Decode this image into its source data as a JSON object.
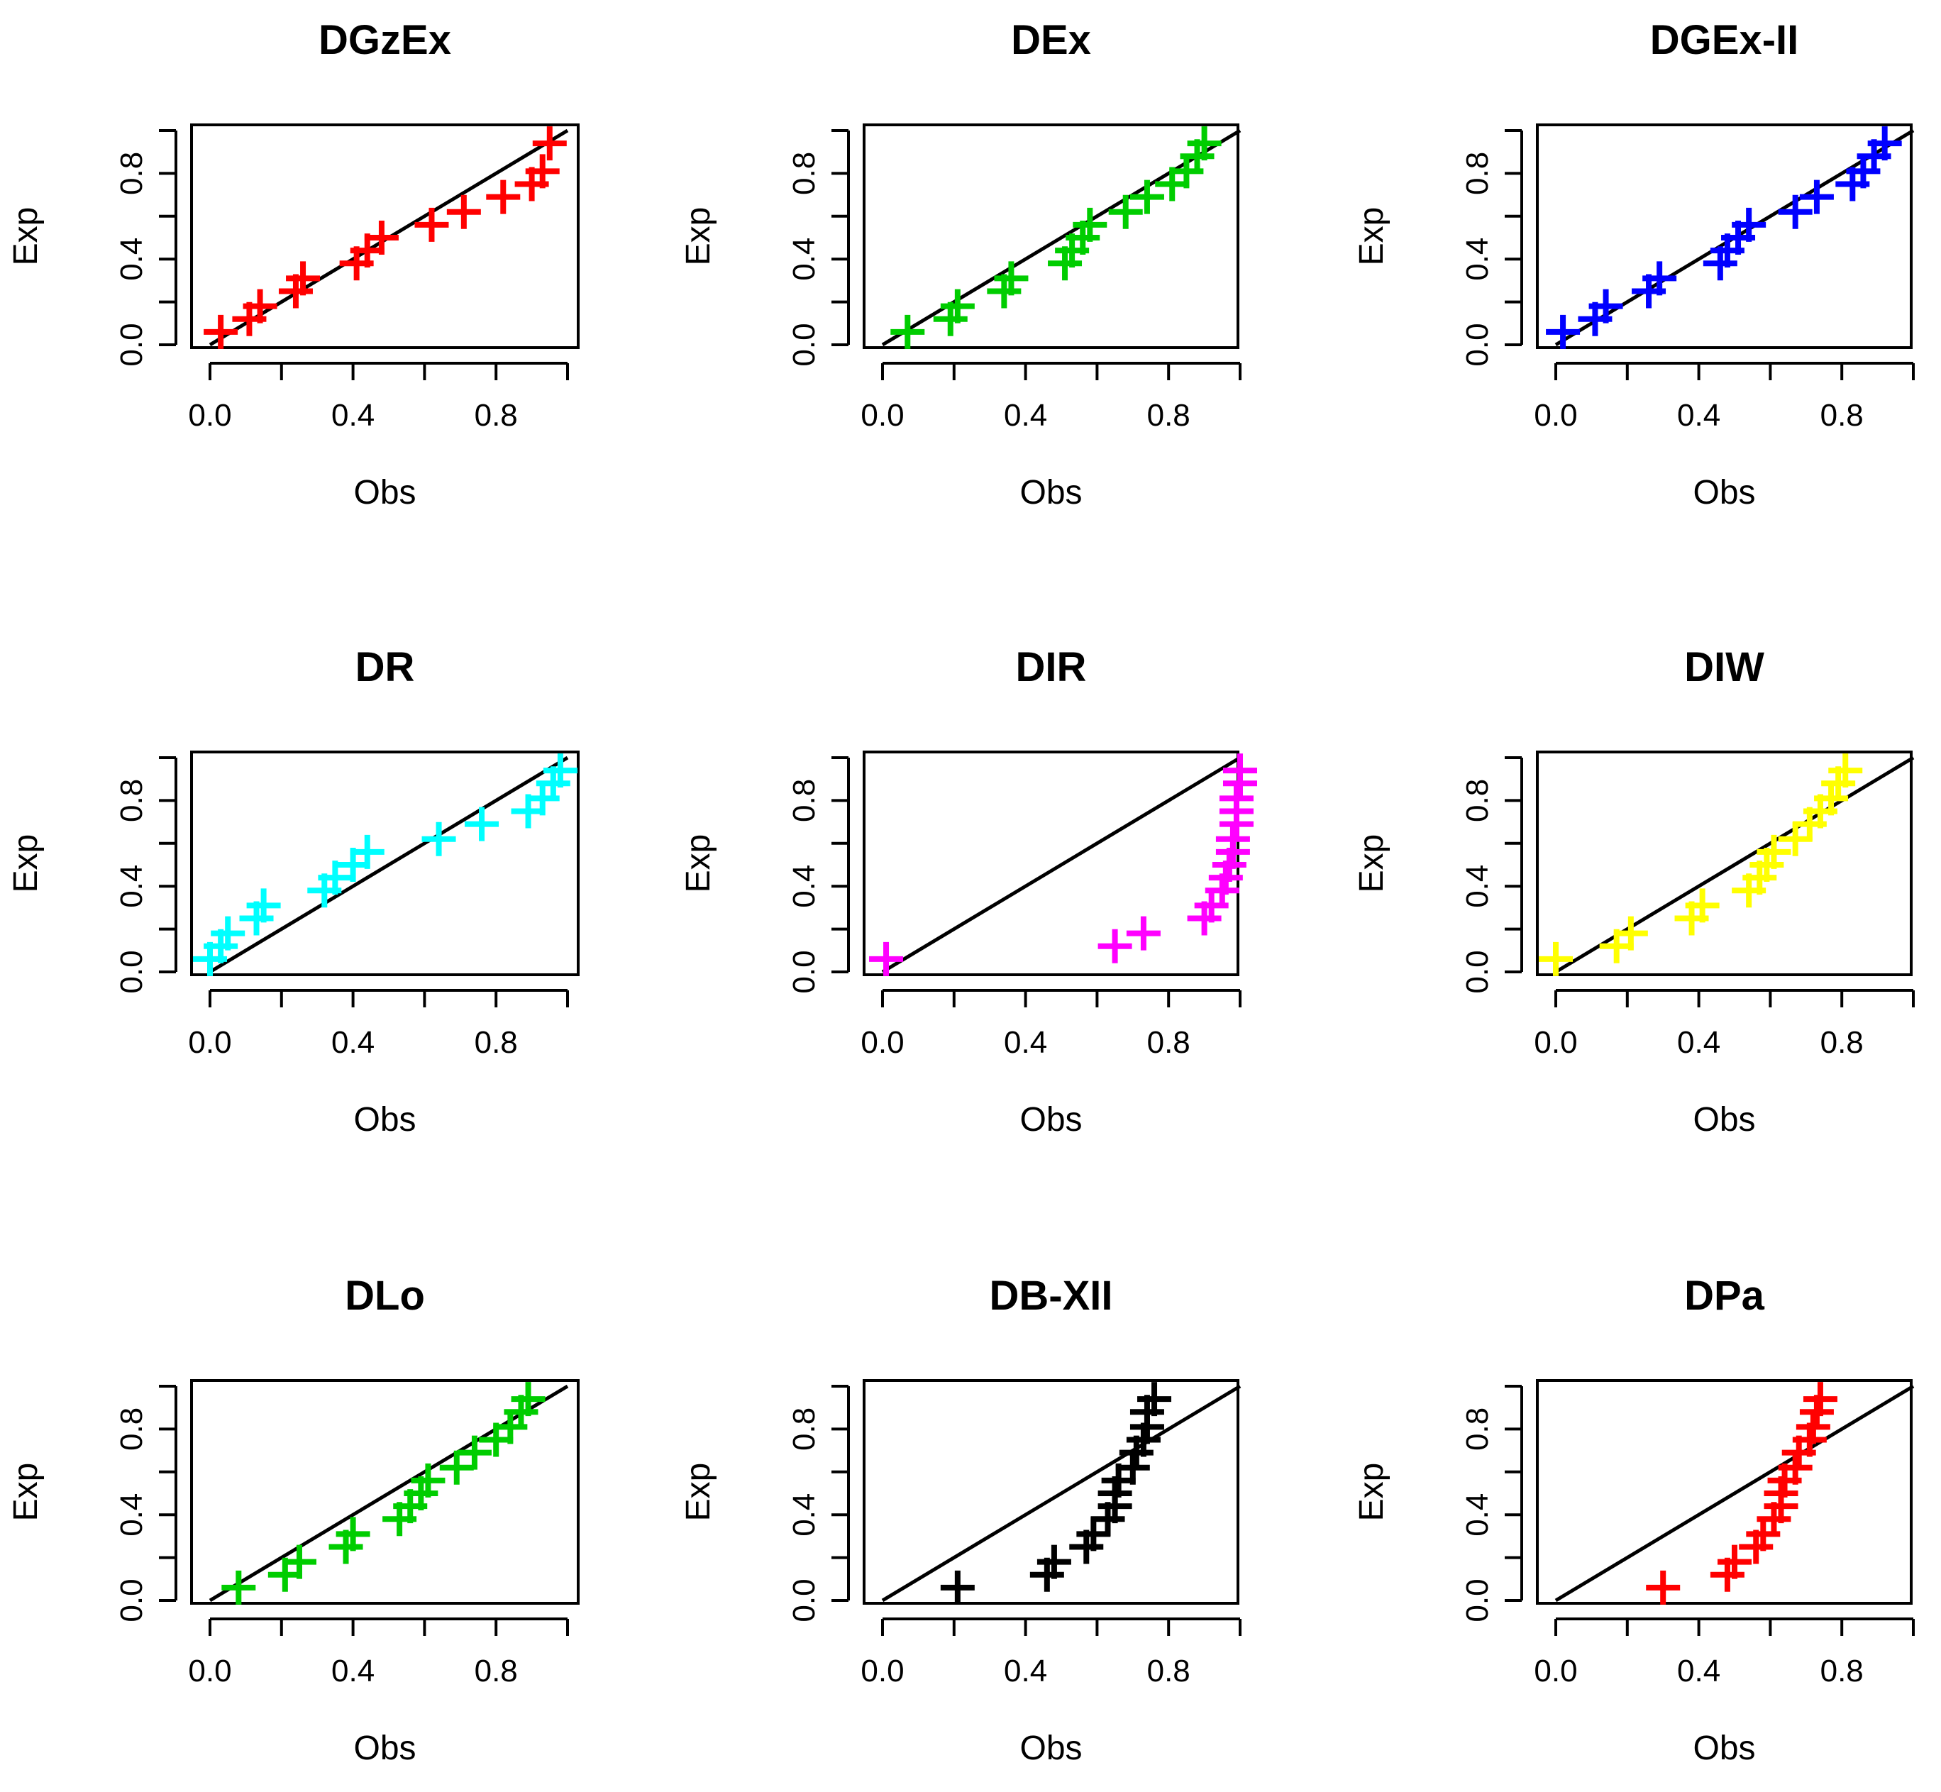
{
  "chart_data": [
    {
      "type": "scatter",
      "title": "DGzEx",
      "xlabel": "Obs",
      "ylabel": "Exp",
      "color": "#ff0000",
      "xlim": [
        0,
        1
      ],
      "ylim": [
        0,
        1
      ],
      "xticks": [
        "0.0",
        "0.4",
        "0.8"
      ],
      "yticks": [
        "0.0",
        "0.4",
        "0.8"
      ],
      "reference_line": "y = x",
      "series": [
        {
          "name": "DGzEx",
          "x": [
            0.03,
            0.11,
            0.14,
            0.24,
            0.26,
            0.41,
            0.44,
            0.48,
            0.62,
            0.71,
            0.82,
            0.9,
            0.93,
            0.95
          ],
          "y": [
            0.06,
            0.12,
            0.18,
            0.25,
            0.31,
            0.38,
            0.44,
            0.5,
            0.56,
            0.62,
            0.69,
            0.75,
            0.81,
            0.94
          ]
        }
      ]
    },
    {
      "type": "scatter",
      "title": "DEx",
      "xlabel": "Obs",
      "ylabel": "Exp",
      "color": "#00cd00",
      "xlim": [
        0,
        1
      ],
      "ylim": [
        0,
        1
      ],
      "xticks": [
        "0.0",
        "0.4",
        "0.8"
      ],
      "yticks": [
        "0.0",
        "0.4",
        "0.8"
      ],
      "reference_line": "y = x",
      "series": [
        {
          "name": "DEx",
          "x": [
            0.07,
            0.19,
            0.21,
            0.34,
            0.36,
            0.51,
            0.53,
            0.56,
            0.58,
            0.68,
            0.74,
            0.81,
            0.85,
            0.88,
            0.9
          ],
          "y": [
            0.06,
            0.12,
            0.18,
            0.25,
            0.31,
            0.38,
            0.44,
            0.5,
            0.56,
            0.62,
            0.69,
            0.75,
            0.81,
            0.88,
            0.94
          ]
        }
      ]
    },
    {
      "type": "scatter",
      "title": "DGEx-II",
      "xlabel": "Obs",
      "ylabel": "Exp",
      "color": "#0000ff",
      "xlim": [
        0,
        1
      ],
      "ylim": [
        0,
        1
      ],
      "xticks": [
        "0.0",
        "0.4",
        "0.8"
      ],
      "yticks": [
        "0.0",
        "0.4",
        "0.8"
      ],
      "reference_line": "y = x",
      "series": [
        {
          "name": "DGEx-II",
          "x": [
            0.02,
            0.11,
            0.14,
            0.26,
            0.29,
            0.46,
            0.48,
            0.51,
            0.54,
            0.67,
            0.73,
            0.83,
            0.86,
            0.89,
            0.92
          ],
          "y": [
            0.06,
            0.12,
            0.18,
            0.25,
            0.31,
            0.38,
            0.44,
            0.5,
            0.56,
            0.62,
            0.69,
            0.75,
            0.81,
            0.88,
            0.94
          ]
        }
      ]
    },
    {
      "type": "scatter",
      "title": "DR",
      "xlabel": "Obs",
      "ylabel": "Exp",
      "color": "#00ffff",
      "xlim": [
        0,
        1
      ],
      "ylim": [
        0,
        1
      ],
      "xticks": [
        "0.0",
        "0.4",
        "0.8"
      ],
      "yticks": [
        "0.0",
        "0.4",
        "0.8"
      ],
      "reference_line": "y = x",
      "series": [
        {
          "name": "DR",
          "x": [
            0.0,
            0.03,
            0.05,
            0.13,
            0.15,
            0.32,
            0.35,
            0.4,
            0.44,
            0.64,
            0.76,
            0.89,
            0.93,
            0.96,
            0.98
          ],
          "y": [
            0.06,
            0.12,
            0.18,
            0.25,
            0.31,
            0.38,
            0.44,
            0.5,
            0.56,
            0.62,
            0.69,
            0.75,
            0.81,
            0.88,
            0.94
          ]
        }
      ]
    },
    {
      "type": "scatter",
      "title": "DIR",
      "xlabel": "Obs",
      "ylabel": "Exp",
      "color": "#ff00ff",
      "xlim": [
        0,
        1
      ],
      "ylim": [
        0,
        1
      ],
      "xticks": [
        "0.0",
        "0.4",
        "0.8"
      ],
      "yticks": [
        "0.0",
        "0.4",
        "0.8"
      ],
      "reference_line": "y = x",
      "series": [
        {
          "name": "DIR",
          "x": [
            0.01,
            0.65,
            0.73,
            0.9,
            0.92,
            0.95,
            0.96,
            0.97,
            0.98,
            0.98,
            0.99,
            0.99,
            0.99,
            1.0,
            1.0
          ],
          "y": [
            0.06,
            0.12,
            0.18,
            0.25,
            0.31,
            0.38,
            0.44,
            0.5,
            0.56,
            0.62,
            0.69,
            0.75,
            0.81,
            0.88,
            0.94
          ]
        }
      ]
    },
    {
      "type": "scatter",
      "title": "DIW",
      "xlabel": "Obs",
      "ylabel": "Exp",
      "color": "#ffff00",
      "xlim": [
        0,
        1
      ],
      "ylim": [
        0,
        1
      ],
      "xticks": [
        "0.0",
        "0.4",
        "0.8"
      ],
      "yticks": [
        "0.0",
        "0.4",
        "0.8"
      ],
      "reference_line": "y = x",
      "series": [
        {
          "name": "DIW",
          "x": [
            0.0,
            0.17,
            0.21,
            0.38,
            0.41,
            0.54,
            0.57,
            0.59,
            0.61,
            0.67,
            0.71,
            0.74,
            0.77,
            0.79,
            0.81
          ],
          "y": [
            0.06,
            0.12,
            0.18,
            0.25,
            0.31,
            0.38,
            0.44,
            0.5,
            0.56,
            0.62,
            0.69,
            0.75,
            0.81,
            0.88,
            0.94
          ]
        }
      ]
    },
    {
      "type": "scatter",
      "title": "DLo",
      "xlabel": "Obs",
      "ylabel": "Exp",
      "color": "#00cd00",
      "xlim": [
        0,
        1
      ],
      "ylim": [
        0,
        1
      ],
      "xticks": [
        "0.0",
        "0.4",
        "0.8"
      ],
      "yticks": [
        "0.0",
        "0.4",
        "0.8"
      ],
      "reference_line": "y = x",
      "series": [
        {
          "name": "DLo",
          "x": [
            0.08,
            0.21,
            0.25,
            0.38,
            0.4,
            0.53,
            0.56,
            0.59,
            0.61,
            0.69,
            0.74,
            0.8,
            0.84,
            0.87,
            0.89
          ],
          "y": [
            0.06,
            0.12,
            0.18,
            0.25,
            0.31,
            0.38,
            0.44,
            0.5,
            0.56,
            0.62,
            0.69,
            0.75,
            0.81,
            0.88,
            0.94
          ]
        }
      ]
    },
    {
      "type": "scatter",
      "title": "DB-XII",
      "xlabel": "Obs",
      "ylabel": "Exp",
      "color": "#000000",
      "xlim": [
        0,
        1
      ],
      "ylim": [
        0,
        1
      ],
      "xticks": [
        "0.0",
        "0.4",
        "0.8"
      ],
      "yticks": [
        "0.0",
        "0.4",
        "0.8"
      ],
      "reference_line": "y = x",
      "series": [
        {
          "name": "DB-XII",
          "x": [
            0.21,
            0.46,
            0.48,
            0.57,
            0.59,
            0.63,
            0.65,
            0.65,
            0.66,
            0.7,
            0.71,
            0.73,
            0.74,
            0.74,
            0.76
          ],
          "y": [
            0.06,
            0.12,
            0.18,
            0.25,
            0.31,
            0.38,
            0.44,
            0.5,
            0.56,
            0.62,
            0.69,
            0.75,
            0.81,
            0.88,
            0.94
          ]
        }
      ]
    },
    {
      "type": "scatter",
      "title": "DPa",
      "xlabel": "Obs",
      "ylabel": "Exp",
      "color": "#ff0000",
      "xlim": [
        0,
        1
      ],
      "ylim": [
        0,
        1
      ],
      "xticks": [
        "0.0",
        "0.4",
        "0.8"
      ],
      "yticks": [
        "0.0",
        "0.4",
        "0.8"
      ],
      "reference_line": "y = x",
      "series": [
        {
          "name": "DPa",
          "x": [
            0.3,
            0.48,
            0.5,
            0.56,
            0.58,
            0.61,
            0.63,
            0.63,
            0.64,
            0.67,
            0.68,
            0.71,
            0.72,
            0.73,
            0.74
          ],
          "y": [
            0.06,
            0.12,
            0.18,
            0.25,
            0.31,
            0.38,
            0.44,
            0.5,
            0.56,
            0.62,
            0.69,
            0.75,
            0.81,
            0.88,
            0.94
          ]
        }
      ]
    }
  ]
}
